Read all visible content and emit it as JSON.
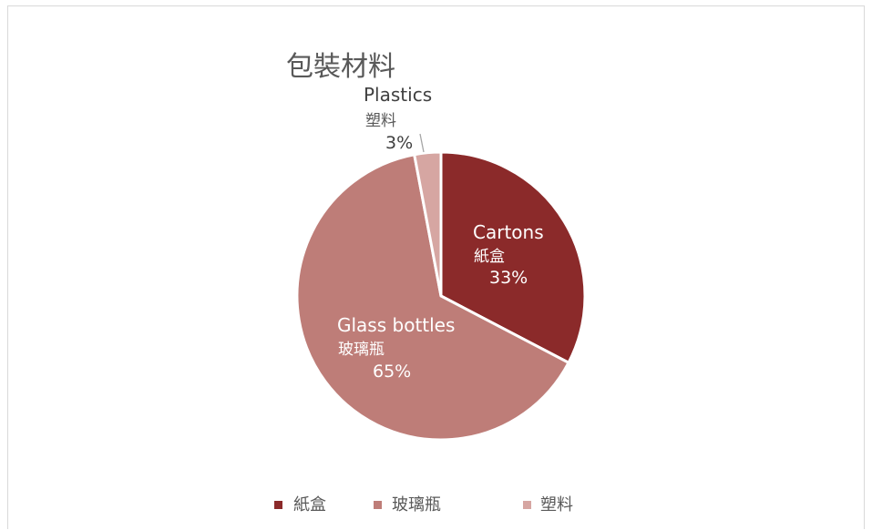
{
  "chart_data": {
    "type": "pie",
    "title": "包裝材料",
    "slices": [
      {
        "name": "Cartons",
        "name_zh": "紙盒",
        "value": 33,
        "label": "33%",
        "color": "#8b2a2a"
      },
      {
        "name": "Glass bottles",
        "name_zh": "玻璃瓶",
        "value": 65,
        "label": "65%",
        "color": "#be7d78"
      },
      {
        "name": "Plastics",
        "name_zh": "塑料",
        "value": 3,
        "label": "3%",
        "color": "#d6a6a2"
      }
    ],
    "legend": {
      "placement": "bottom",
      "entries": [
        "紙盒",
        "玻璃瓶",
        "塑料"
      ]
    }
  }
}
